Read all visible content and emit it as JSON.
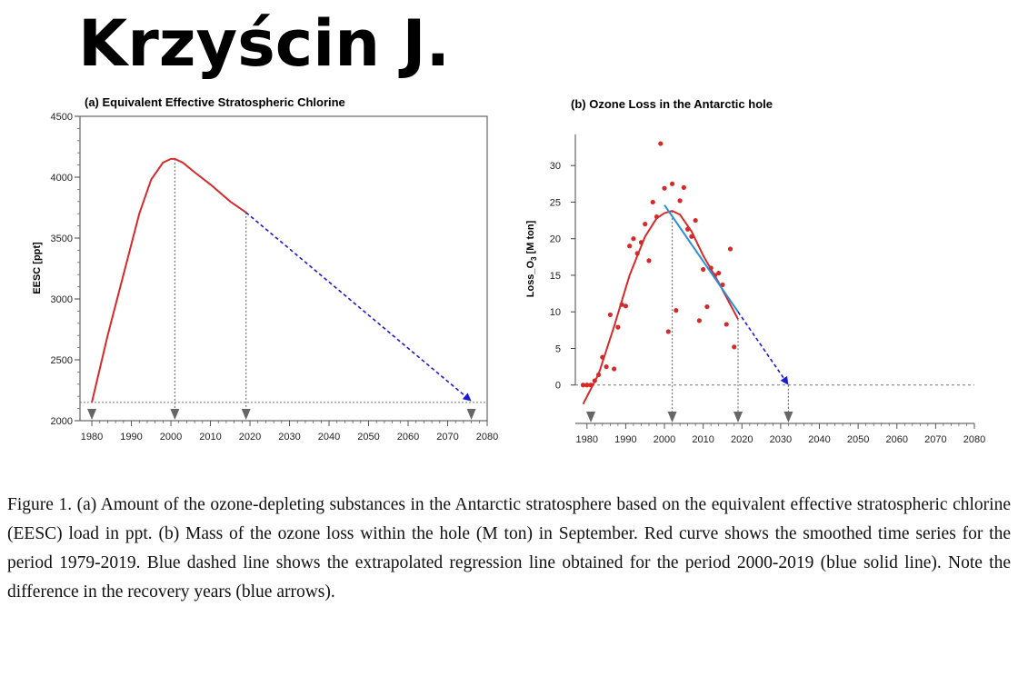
{
  "author": "Krzyścin J.",
  "caption": "Figure 1. (a) Amount of the ozone-depleting substances in the Antarctic stratosphere based on the equivalent effective stratospheric chlorine (EESC) load in ppt. (b) Mass of the ozone loss within the hole (M ton) in September. Red curve shows the smoothed time series for the period 1979-2019. Blue dashed line shows the extrapolated regression line obtained for the period 2000-2019 (blue solid line). Note the difference in the recovery years (blue arrows).",
  "colors": {
    "red": "#d42a2a",
    "blue_dashed": "#1a1ad6",
    "blue_solid": "#2a8fd6",
    "guide": "#777777",
    "arrow": "#666666"
  },
  "chart_data": [
    {
      "type": "line",
      "title": "(a) Equivalent Effective Stratospheric Chlorine",
      "ylabel": "EESC [ppt]",
      "xlabel": "",
      "xlim": [
        1977,
        2080
      ],
      "ylim": [
        2000,
        4500
      ],
      "xticks": [
        1980,
        1990,
        2000,
        2010,
        2020,
        2030,
        2040,
        2050,
        2060,
        2070,
        2080
      ],
      "yticks": [
        2000,
        2500,
        3000,
        3500,
        4000,
        4500
      ],
      "series": [
        {
          "style": "red-solid",
          "x": [
            1980,
            1984,
            1988,
            1992,
            1995,
            1998,
            2000,
            2001,
            2003,
            2006,
            2010,
            2015,
            2019
          ],
          "y": [
            2150,
            2700,
            3200,
            3700,
            3980,
            4120,
            4150,
            4150,
            4120,
            4040,
            3940,
            3800,
            3710
          ]
        },
        {
          "style": "blue-dashed",
          "x": [
            2019,
            2076
          ],
          "y": [
            3710,
            2160
          ]
        }
      ],
      "reference_line": {
        "y": 2150
      },
      "verticals": [
        {
          "x": 2001,
          "y": 4150
        },
        {
          "x": 2019,
          "y": 3710
        }
      ],
      "arrows": [
        1980,
        2001,
        2019,
        2076
      ]
    },
    {
      "type": "scatter",
      "title": "(b) Ozone Loss in the Antarctic hole",
      "ylabel": "Loss_O3 [M ton]",
      "xlabel": "",
      "xlim": [
        1977,
        2080
      ],
      "ylim": [
        -5,
        34
      ],
      "xticks": [
        1980,
        1990,
        2000,
        2010,
        2020,
        2030,
        2040,
        2050,
        2060,
        2070,
        2080
      ],
      "yticks": [
        0,
        5,
        10,
        15,
        20,
        25,
        30
      ],
      "points": [
        [
          1979,
          0
        ],
        [
          1980,
          0
        ],
        [
          1981,
          0
        ],
        [
          1982,
          0.6
        ],
        [
          1983,
          1.4
        ],
        [
          1984,
          3.8
        ],
        [
          1985,
          2.5
        ],
        [
          1986,
          9.6
        ],
        [
          1987,
          2.2
        ],
        [
          1988,
          7.9
        ],
        [
          1989,
          11
        ],
        [
          1990,
          10.8
        ],
        [
          1991,
          19
        ],
        [
          1992,
          20
        ],
        [
          1993,
          18
        ],
        [
          1994,
          19.5
        ],
        [
          1995,
          22
        ],
        [
          1996,
          17
        ],
        [
          1997,
          25
        ],
        [
          1998,
          23
        ],
        [
          1999,
          33
        ],
        [
          2000,
          26.9
        ],
        [
          2001,
          7.3
        ],
        [
          2002,
          27.5
        ],
        [
          2003,
          10.2
        ],
        [
          2004,
          25.2
        ],
        [
          2005,
          27
        ],
        [
          2006,
          21.3
        ],
        [
          2007,
          20.3
        ],
        [
          2008,
          22.5
        ],
        [
          2009,
          8.8
        ],
        [
          2010,
          15.8
        ],
        [
          2011,
          10.7
        ],
        [
          2012,
          16
        ],
        [
          2013,
          15
        ],
        [
          2014,
          15.3
        ],
        [
          2015,
          13.7
        ],
        [
          2016,
          8.3
        ],
        [
          2017,
          18.6
        ],
        [
          2018,
          5.2
        ]
      ],
      "series": [
        {
          "style": "red-solid",
          "x": [
            1979,
            1983,
            1987,
            1991,
            1995,
            1998,
            2000,
            2002,
            2004,
            2007,
            2010,
            2014,
            2019
          ],
          "y": [
            -2.6,
            1.5,
            8,
            15,
            20.3,
            22.8,
            23.5,
            23.8,
            23.3,
            21,
            17.7,
            14,
            9
          ]
        },
        {
          "style": "blue-solid",
          "x": [
            2000,
            2019
          ],
          "y": [
            24.6,
            10
          ]
        },
        {
          "style": "blue-dashed",
          "x": [
            2019,
            2032
          ],
          "y": [
            10,
            0
          ]
        }
      ],
      "reference_line": {
        "y": 0
      },
      "verticals": [
        {
          "x": 2002,
          "y": 23.8
        },
        {
          "x": 2019,
          "y": 9
        },
        {
          "x": 2032,
          "y": 0
        }
      ],
      "arrows": [
        1981,
        2002,
        2019,
        2032
      ]
    }
  ]
}
